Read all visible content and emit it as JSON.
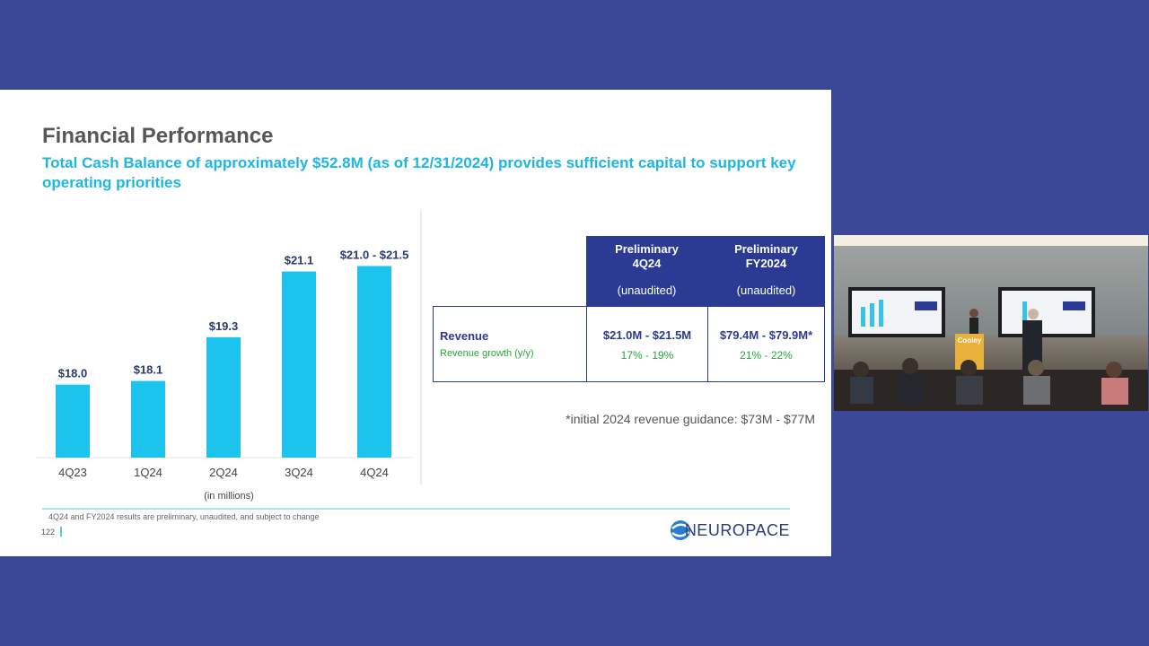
{
  "slide": {
    "title": "Financial Performance",
    "subtitle": "Total Cash Balance of approximately $52.8M (as of 12/31/2024) provides sufficient capital to support key operating priorities",
    "footer_note": "4Q24 and FY2024 results are preliminary, unaudited, and subject to change",
    "page_number": "122",
    "logo": "NEUROPACE"
  },
  "chart_data": {
    "type": "bar",
    "categories": [
      "4Q23",
      "1Q24",
      "2Q24",
      "3Q24",
      "4Q24"
    ],
    "values": [
      18.0,
      18.1,
      19.3,
      21.1,
      21.25
    ],
    "value_labels": [
      "$18.0",
      "$18.1",
      "$19.3",
      "$21.1",
      "$21.0 - $21.5"
    ],
    "color": "#1cc3ec",
    "ylim": [
      16,
      22
    ],
    "note": "(in millions)"
  },
  "table": {
    "columns": [
      {
        "title": "Preliminary 4Q24",
        "subtitle": "(unaudited)"
      },
      {
        "title": "Preliminary FY2024",
        "subtitle": "(unaudited)"
      }
    ],
    "row": {
      "label": "Revenue",
      "sublabel": "Revenue growth (y/y)",
      "cells": [
        {
          "value": "$21.0M - $21.5M",
          "growth": "17% - 19%"
        },
        {
          "value": "$79.4M - $79.9M*",
          "growth": "21% - 22%"
        }
      ]
    },
    "footnote": "*initial 2024 revenue guidance: $73M - $77M"
  },
  "video": {
    "podium_label": "Cooley"
  }
}
